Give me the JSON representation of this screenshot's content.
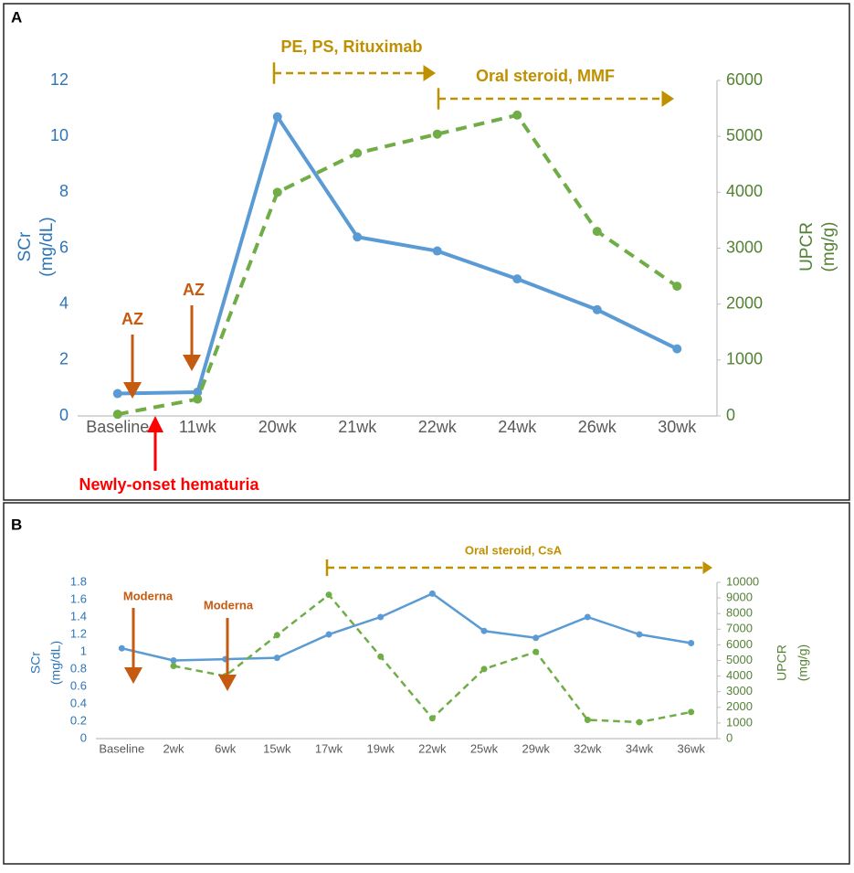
{
  "chart_data": [
    {
      "type": "line",
      "panel": "A",
      "categories": [
        "Baseline",
        "11wk",
        "20wk",
        "21wk",
        "22wk",
        "24wk",
        "26wk",
        "30wk"
      ],
      "ylabel": [
        "SCr",
        "(mg/dL)"
      ],
      "y2label": [
        "UPCR",
        "(mg/g)"
      ],
      "ylim": [
        0,
        12
      ],
      "yticks": [
        0,
        2,
        4,
        6,
        8,
        10,
        12
      ],
      "y2lim": [
        0,
        6000
      ],
      "y2ticks": [
        0,
        1000,
        2000,
        3000,
        4000,
        5000,
        6000
      ],
      "series": [
        {
          "name": "SCr",
          "color": "#5b9bd5",
          "dash": false,
          "values": [
            0.8,
            0.85,
            10.7,
            6.4,
            5.9,
            4.9,
            3.8,
            2.4
          ]
        },
        {
          "name": "UPCR",
          "color": "#70ad47",
          "dash": true,
          "axis": "y2",
          "values": [
            30,
            300,
            4000,
            4700,
            5040,
            5380,
            3300,
            2320
          ]
        }
      ],
      "annotations": [
        "PE, PS, Rituximab",
        "Oral steroid, MMF",
        "AZ",
        "AZ",
        "Newly-onset hematuria"
      ]
    },
    {
      "type": "line",
      "panel": "B",
      "categories": [
        "Baseline",
        "2wk",
        "6wk",
        "15wk",
        "17wk",
        "19wk",
        "22wk",
        "25wk",
        "29wk",
        "32wk",
        "34wk",
        "36wk"
      ],
      "ylabel": [
        "SCr",
        "(mg/dL)"
      ],
      "y2label": [
        "UPCR",
        "(mg/g)"
      ],
      "ylim": [
        0,
        1.8
      ],
      "yticks": [
        0,
        0.2,
        0.4,
        0.6,
        0.8,
        1,
        1.2,
        1.4,
        1.6,
        1.8
      ],
      "y2lim": [
        0,
        10000
      ],
      "y2ticks": [
        0,
        1000,
        2000,
        3000,
        4000,
        5000,
        6000,
        7000,
        8000,
        9000,
        10000
      ],
      "series": [
        {
          "name": "SCr",
          "color": "#5b9bd5",
          "dash": false,
          "values": [
            1.04,
            0.9,
            0.915,
            0.93,
            1.2,
            1.4,
            1.67,
            1.24,
            1.16,
            1.4,
            1.2,
            1.1
          ]
        },
        {
          "name": "UPCR",
          "color": "#70ad47",
          "dash": true,
          "axis": "y2",
          "values": [
            null,
            4650,
            4000,
            6620,
            9200,
            5250,
            1300,
            4450,
            5550,
            1200,
            1050,
            1700
          ]
        }
      ],
      "annotations": [
        "Oral steroid, CsA",
        "Moderna",
        "Moderna"
      ]
    }
  ]
}
